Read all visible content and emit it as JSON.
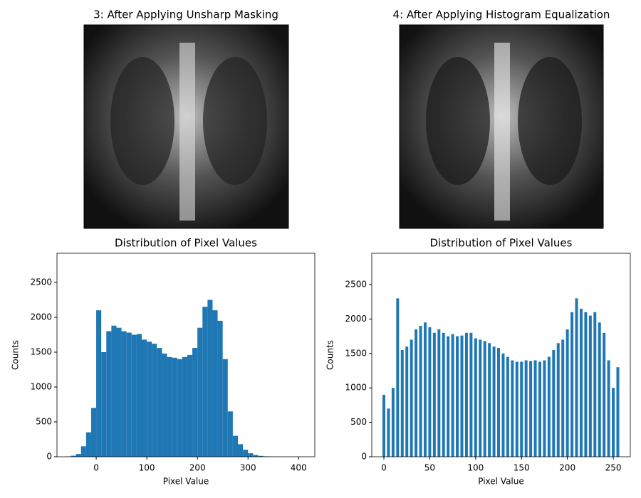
{
  "images": [
    {
      "title": "3: After Applying Unsharp Masking"
    },
    {
      "title": "4: After Applying Histogram Equalization"
    }
  ],
  "chart_data": [
    {
      "type": "histogram",
      "title": "Distribution of Pixel Values",
      "x_label": "Pixel Value",
      "y_label": "Counts",
      "color": "#1f77b4",
      "bins": [
        -60,
        -50,
        -40,
        -30,
        -20,
        -10,
        0,
        10,
        20,
        30,
        40,
        50,
        60,
        70,
        80,
        90,
        100,
        110,
        120,
        130,
        140,
        150,
        160,
        170,
        180,
        190,
        200,
        210,
        220,
        230,
        240,
        250,
        260,
        270,
        280,
        290,
        300,
        310,
        320,
        330,
        340,
        350,
        360
      ],
      "values": [
        5,
        15,
        40,
        150,
        350,
        700,
        2100,
        1500,
        1800,
        1880,
        1850,
        1800,
        1780,
        1750,
        1760,
        1680,
        1650,
        1620,
        1560,
        1480,
        1430,
        1420,
        1400,
        1430,
        1460,
        1560,
        1850,
        2150,
        2250,
        2100,
        1950,
        1400,
        650,
        300,
        180,
        100,
        50,
        25,
        12,
        6,
        3,
        1
      ],
      "xlim": [
        -77.5,
        432
      ],
      "ylim": [
        0,
        2918
      ],
      "xticks": [
        0,
        100,
        200,
        300,
        400
      ],
      "yticks": [
        0,
        500,
        1000,
        1500,
        2000,
        2500
      ]
    },
    {
      "type": "bar",
      "title": "Distribution of Pixel Values",
      "x_label": "Pixel Value",
      "y_label": "Counts",
      "color": "#1f77b4",
      "x": [
        0,
        5,
        10,
        15,
        20,
        25,
        30,
        35,
        40,
        45,
        50,
        55,
        60,
        65,
        70,
        75,
        80,
        85,
        90,
        95,
        100,
        105,
        110,
        115,
        120,
        125,
        130,
        135,
        140,
        145,
        150,
        155,
        160,
        165,
        170,
        175,
        180,
        185,
        190,
        195,
        200,
        205,
        210,
        215,
        220,
        225,
        230,
        235,
        240,
        245,
        250,
        255
      ],
      "values": [
        900,
        700,
        1000,
        2300,
        1550,
        1600,
        1700,
        1850,
        1900,
        1950,
        1880,
        1800,
        1850,
        1800,
        1750,
        1780,
        1750,
        1760,
        1800,
        1800,
        1720,
        1700,
        1680,
        1650,
        1600,
        1580,
        1500,
        1450,
        1400,
        1380,
        1380,
        1400,
        1390,
        1400,
        1380,
        1400,
        1450,
        1550,
        1650,
        1700,
        1850,
        2100,
        2300,
        2150,
        2100,
        2050,
        2100,
        1950,
        1800,
        1400,
        1000,
        1300
      ],
      "xlim": [
        -13.2,
        268.6
      ],
      "ylim": [
        0,
        2955
      ],
      "xticks": [
        0,
        50,
        100,
        150,
        200,
        250
      ],
      "yticks": [
        0,
        500,
        1000,
        1500,
        2000,
        2500
      ]
    }
  ]
}
